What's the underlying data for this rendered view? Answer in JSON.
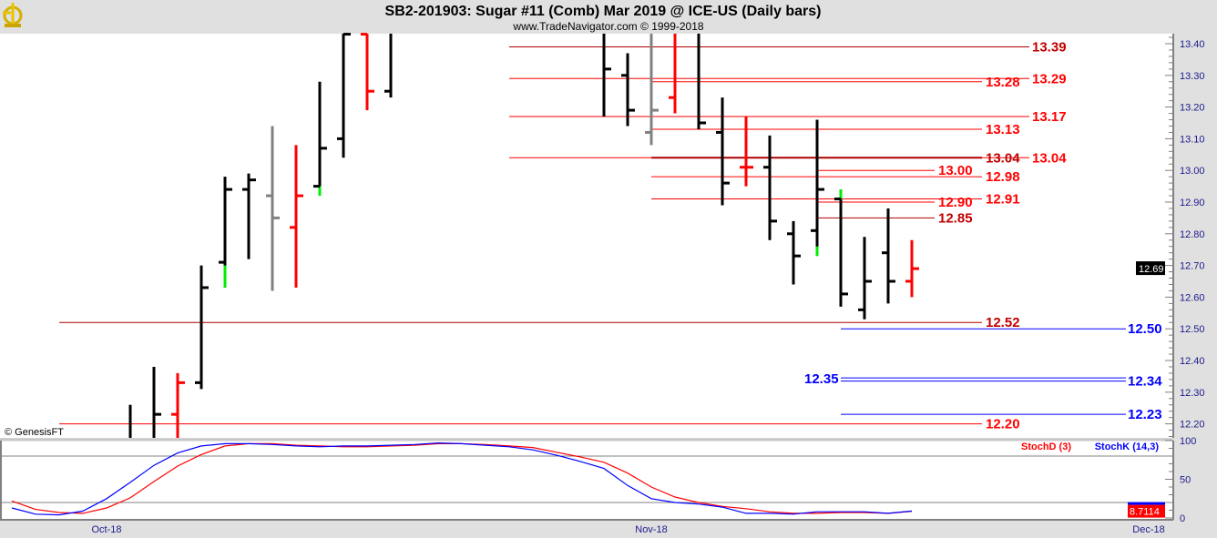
{
  "header": {
    "title": "SB2-201903:  Sugar #11 (Comb) Mar 2019 @ ICE-US  (Daily bars)",
    "subtitle": "www.TradeNavigator.com © 1999-2018",
    "logo_icon": "sextant-logo-icon"
  },
  "copyright": "© GenesisFT",
  "colors": {
    "up": "#000000",
    "down": "#ff0000",
    "neutral": "#808080",
    "accent": "#00ee00",
    "level_red": "#ff0000",
    "level_darkred": "#b00000",
    "level_blue": "#0000ff",
    "stochK": "#0000ff",
    "stochD": "#ff0000"
  },
  "chart_data": [
    {
      "type": "ohlc",
      "ylim": [
        12.16,
        13.44
      ],
      "yticks": [
        "13.40",
        "13.30",
        "13.20",
        "13.10",
        "13.00",
        "12.90",
        "12.80",
        "12.70",
        "12.60",
        "12.50",
        "12.40",
        "12.30",
        "12.20"
      ],
      "last_price": "12.69",
      "bars": [
        {
          "o": null,
          "h": 12.26,
          "l": 12.15,
          "c": null,
          "color": "up"
        },
        {
          "o": null,
          "h": 12.38,
          "l": 12.15,
          "c": 12.23,
          "color": "up"
        },
        {
          "o": 12.23,
          "h": 12.36,
          "l": 12.15,
          "c": 12.33,
          "color": "down"
        },
        {
          "o": 12.33,
          "h": 12.7,
          "l": 12.31,
          "c": 12.63,
          "color": "up"
        },
        {
          "o": 12.71,
          "h": 12.98,
          "l": 12.63,
          "c": 12.94,
          "color": "up",
          "green": [
            12.63,
            12.7
          ]
        },
        {
          "o": 12.94,
          "h": 12.99,
          "l": 12.72,
          "c": 12.97,
          "color": "up"
        },
        {
          "o": 12.92,
          "h": 13.14,
          "l": 12.62,
          "c": 12.85,
          "color": "neutral"
        },
        {
          "o": 12.82,
          "h": 13.08,
          "l": 12.63,
          "c": 12.92,
          "color": "down"
        },
        {
          "o": 12.95,
          "h": 13.28,
          "l": 12.92,
          "c": 13.07,
          "color": "up",
          "green": [
            12.92,
            12.95
          ]
        },
        {
          "o": 13.1,
          "h": 13.45,
          "l": 13.04,
          "c": 13.43,
          "color": "up"
        },
        {
          "o": 13.43,
          "h": 13.45,
          "l": 13.19,
          "c": 13.25,
          "color": "down"
        },
        {
          "o": 13.25,
          "h": 13.45,
          "l": 13.23,
          "c": null,
          "color": "up"
        },
        null,
        null,
        null,
        null,
        null,
        null,
        null,
        null,
        {
          "o": null,
          "h": 13.45,
          "l": 13.17,
          "c": 13.32,
          "color": "up"
        },
        {
          "o": 13.3,
          "h": 13.37,
          "l": 13.14,
          "c": 13.19,
          "color": "up"
        },
        {
          "o": 13.12,
          "h": 13.45,
          "l": 13.08,
          "c": 13.19,
          "color": "neutral"
        },
        {
          "o": 13.23,
          "h": 13.45,
          "l": 13.18,
          "c": null,
          "color": "down"
        },
        {
          "o": null,
          "h": 13.45,
          "l": 13.13,
          "c": 13.15,
          "color": "up"
        },
        {
          "o": 13.12,
          "h": 13.23,
          "l": 12.89,
          "c": 12.96,
          "color": "up"
        },
        {
          "o": 13.01,
          "h": 13.17,
          "l": 12.95,
          "c": 13.01,
          "color": "down"
        },
        {
          "o": 13.01,
          "h": 13.11,
          "l": 12.78,
          "c": 12.84,
          "color": "up"
        },
        {
          "o": 12.8,
          "h": 12.84,
          "l": 12.64,
          "c": 12.73,
          "color": "up"
        },
        {
          "o": 12.81,
          "h": 13.16,
          "l": 12.73,
          "c": 12.94,
          "color": "up",
          "green": [
            12.73,
            12.76
          ]
        },
        {
          "o": 12.91,
          "h": 12.94,
          "l": 12.57,
          "c": 12.61,
          "color": "up",
          "green": [
            12.91,
            12.94
          ]
        },
        {
          "o": 12.56,
          "h": 12.79,
          "l": 12.53,
          "c": 12.65,
          "color": "up"
        },
        {
          "o": 12.74,
          "h": 12.88,
          "l": 12.58,
          "c": 12.65,
          "color": "up"
        },
        {
          "o": 12.65,
          "h": 12.78,
          "l": 12.6,
          "c": 12.69,
          "color": "down"
        }
      ],
      "levels": [
        {
          "price": 13.39,
          "label": "13.39",
          "group": "long",
          "color": "level_darkred"
        },
        {
          "price": 13.29,
          "label": "13.29",
          "group": "long",
          "color": "level_red"
        },
        {
          "price": 13.17,
          "label": "13.17",
          "group": "long",
          "color": "level_red"
        },
        {
          "price": 13.04,
          "label": "13.04",
          "group": "long",
          "color": "level_red"
        },
        {
          "price": 13.28,
          "label": "13.28",
          "group": "mid",
          "color": "level_red"
        },
        {
          "price": 13.13,
          "label": "13.13",
          "group": "mid",
          "color": "level_red"
        },
        {
          "price": 13.04,
          "label": "13.04",
          "group": "mid",
          "color": "level_darkred",
          "thick": true
        },
        {
          "price": 12.98,
          "label": "12.98",
          "group": "mid",
          "color": "level_red"
        },
        {
          "price": 12.91,
          "label": "12.91",
          "group": "mid",
          "color": "level_red"
        },
        {
          "price": 13.0,
          "label": "13.00",
          "group": "short",
          "color": "level_red"
        },
        {
          "price": 12.9,
          "label": "12.90",
          "group": "short",
          "color": "level_red"
        },
        {
          "price": 12.85,
          "label": "12.85",
          "group": "short",
          "color": "level_darkred"
        },
        {
          "price": 12.52,
          "label": "12.52",
          "group": "wide",
          "color": "level_darkred"
        },
        {
          "price": 12.2,
          "label": "12.20",
          "group": "wide",
          "color": "level_red"
        },
        {
          "price": 12.5,
          "label": "12.50",
          "group": "blue",
          "color": "level_blue"
        },
        {
          "price": 12.345,
          "label": "12.35",
          "group": "blue_left",
          "color": "level_blue"
        },
        {
          "price": 12.335,
          "label": "12.34",
          "group": "blue",
          "color": "level_blue"
        },
        {
          "price": 12.23,
          "label": "12.23",
          "group": "blue",
          "color": "level_blue"
        }
      ]
    },
    {
      "type": "line",
      "ylim": [
        0,
        100
      ],
      "yticks": [
        "100",
        "50",
        "0"
      ],
      "reference_lines": [
        80,
        20
      ],
      "x_ticks": [
        "Oct-18",
        "Nov-18",
        "Dec-18"
      ],
      "last_value": "8.7114",
      "series": [
        {
          "name": "StochD (3)",
          "color": "stochD",
          "values": [
            22,
            11,
            7,
            6,
            13,
            26,
            47,
            67,
            82,
            93,
            96,
            96,
            94,
            93,
            92,
            92,
            93,
            94,
            96,
            96,
            95,
            93,
            91,
            85,
            79,
            72,
            58,
            40,
            27,
            20,
            15,
            12,
            8,
            6,
            6,
            7,
            7,
            6,
            8.7
          ]
        },
        {
          "name": "StochK (14,3)",
          "color": "stochK",
          "values": [
            13,
            5,
            4,
            9,
            25,
            46,
            68,
            84,
            93,
            96,
            96,
            95,
            93,
            92,
            93,
            93,
            94,
            95,
            97,
            96,
            94,
            92,
            88,
            81,
            73,
            64,
            42,
            25,
            20,
            18,
            14,
            6,
            6,
            5,
            8,
            8,
            8,
            6,
            9
          ]
        }
      ]
    }
  ]
}
